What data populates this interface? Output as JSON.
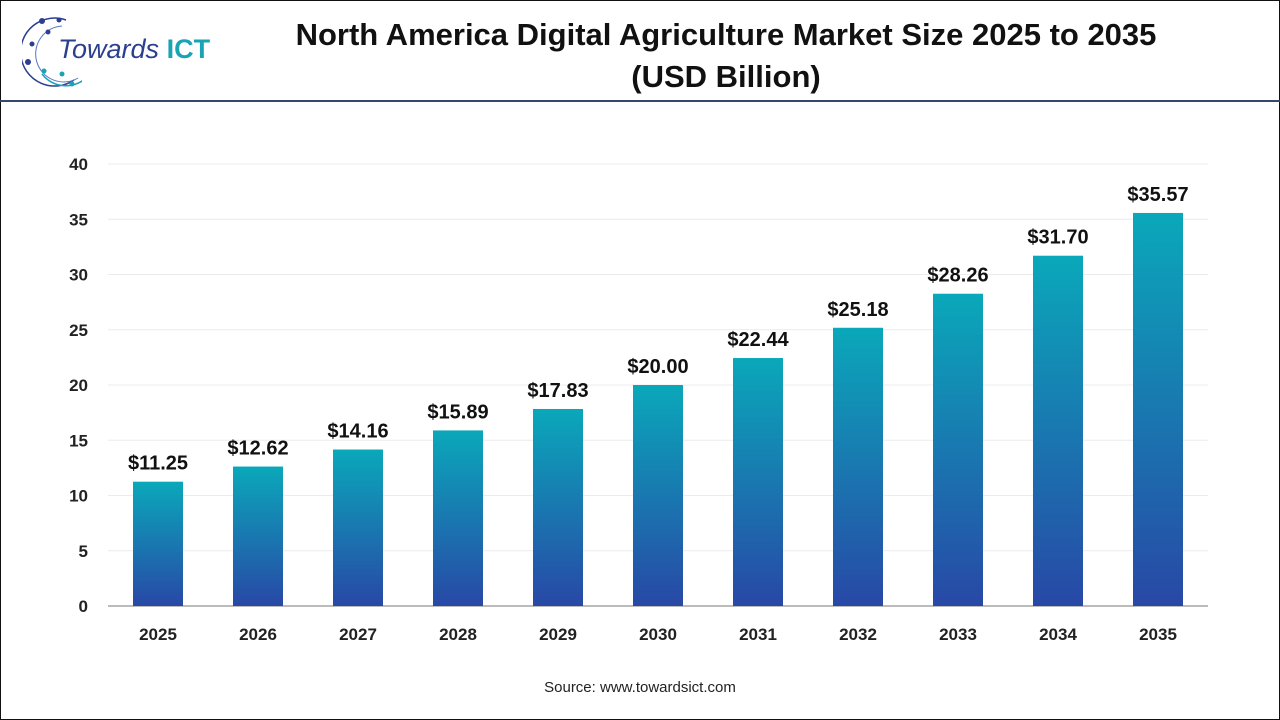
{
  "header": {
    "logo_text": "Towards",
    "logo_accent": "ICT",
    "title_line1": "North America Digital Agriculture Market Size 2025 to 2035",
    "title_line2": "(USD Billion)"
  },
  "source": "Source: www.towardsict.com",
  "colors": {
    "bar_top": "#0aa8ba",
    "bar_bottom": "#2848a6",
    "header_rule": "#34496a"
  },
  "chart_data": {
    "type": "bar",
    "title": "North America Digital Agriculture Market Size 2025 to 2035 (USD Billion)",
    "categories": [
      "2025",
      "2026",
      "2027",
      "2028",
      "2029",
      "2030",
      "2031",
      "2032",
      "2033",
      "2034",
      "2035"
    ],
    "values": [
      11.25,
      12.62,
      14.16,
      15.89,
      17.83,
      20.0,
      22.44,
      25.18,
      28.26,
      31.7,
      35.57
    ],
    "data_labels": [
      "$11.25",
      "$12.62",
      "$14.16",
      "$15.89",
      "$17.83",
      "$20.00",
      "$22.44",
      "$25.18",
      "$28.26",
      "$31.70",
      "$35.57"
    ],
    "yticks": [
      "0",
      "5",
      "10",
      "15",
      "20",
      "25",
      "30",
      "35",
      "40"
    ],
    "ylim": [
      0,
      40
    ],
    "xlabel": "",
    "ylabel": "",
    "grid": true,
    "legend": "none"
  }
}
